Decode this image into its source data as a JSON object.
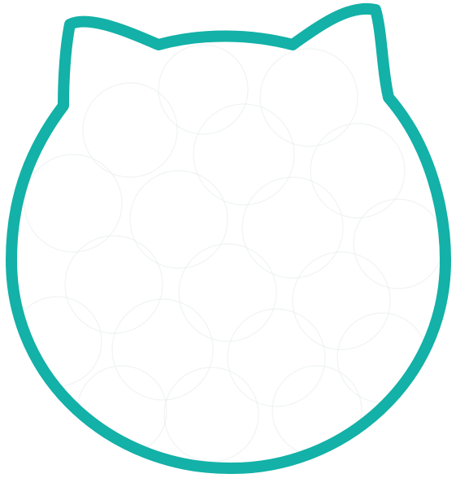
{
  "shape": {
    "icon": "cat-head-outline-icon",
    "outline_color": "#13b1a7",
    "fill_color": "#ffffff",
    "texture_color": "#e9eef0"
  }
}
